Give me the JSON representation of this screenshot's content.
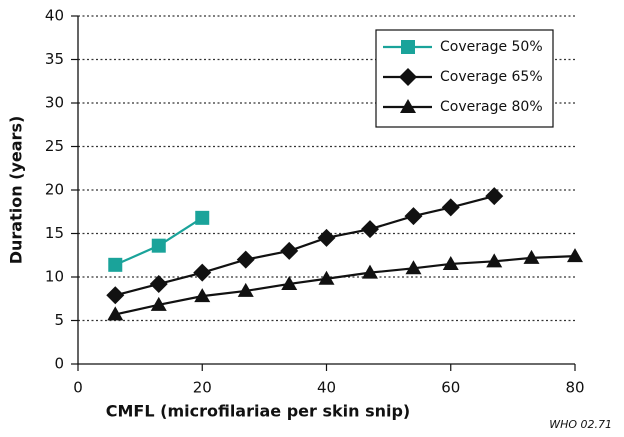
{
  "chart_data": {
    "type": "line",
    "xlabel": "CMFL (microfilariae per skin snip)",
    "ylabel": "Duration (years)",
    "annotation": "WHO 02.71",
    "xlim": [
      0,
      80
    ],
    "xticks": [
      0,
      20,
      40,
      60,
      80
    ],
    "ylim": [
      0,
      40
    ],
    "yticks": [
      0,
      5,
      10,
      15,
      20,
      25,
      30,
      35,
      40
    ],
    "grid": true,
    "legend": "upper right",
    "series": [
      {
        "name": "Coverage 50%",
        "color": "#1aa39a",
        "marker": "square",
        "x": [
          6,
          13,
          20
        ],
        "values": [
          11.4,
          13.6,
          16.8
        ]
      },
      {
        "name": "Coverage 65%",
        "color": "#111111",
        "marker": "diamond",
        "x": [
          6,
          13,
          20,
          27,
          34,
          40,
          47,
          54,
          60,
          67
        ],
        "values": [
          7.9,
          9.2,
          10.5,
          12.0,
          13.0,
          14.5,
          15.5,
          17.0,
          18.0,
          19.3
        ]
      },
      {
        "name": "Coverage 80%",
        "color": "#111111",
        "marker": "triangle",
        "x": [
          6,
          13,
          20,
          27,
          34,
          40,
          47,
          54,
          60,
          67,
          73,
          80
        ],
        "values": [
          5.7,
          6.8,
          7.8,
          8.4,
          9.2,
          9.8,
          10.5,
          11.0,
          11.5,
          11.8,
          12.2,
          12.4
        ]
      }
    ]
  }
}
